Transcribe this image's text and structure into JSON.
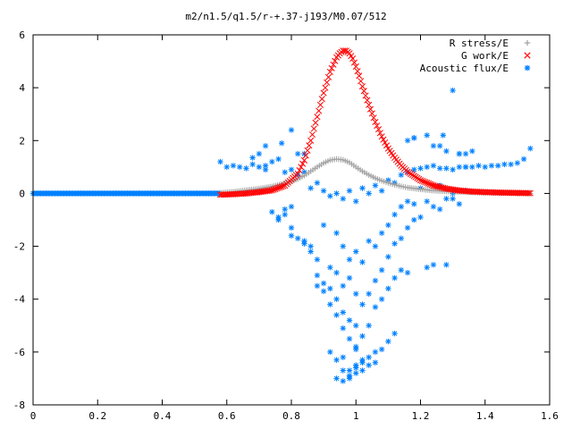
{
  "chart_data": {
    "type": "scatter",
    "title": "m2/n1.5/q1.5/r-+.37-j193/M0.07/512",
    "xlim": [
      0,
      1.6
    ],
    "ylim": [
      -8,
      6
    ],
    "xticks": [
      "0",
      "0.2",
      "0.4",
      "0.6",
      "0.8",
      "1",
      "1.2",
      "1.4",
      "1.6"
    ],
    "yticks": [
      "6",
      "4",
      "2",
      "0",
      "-2",
      "-4",
      "-6",
      "-8"
    ],
    "legend_position": "top-right",
    "colors": {
      "r_stress": "#a0a0a0",
      "g_work": "#ff0000",
      "acoustic": "#0080ff"
    },
    "series": [
      {
        "name": "R stress/E",
        "marker": "plus",
        "x": [
          0.58,
          0.62,
          0.66,
          0.7,
          0.74,
          0.78,
          0.82,
          0.84,
          0.86,
          0.88,
          0.9,
          0.92,
          0.94,
          0.96,
          0.98,
          1.0,
          1.02,
          1.04,
          1.06,
          1.08,
          1.1,
          1.12,
          1.14,
          1.16,
          1.2,
          1.24,
          1.28,
          1.32,
          1.36,
          1.4,
          1.45,
          1.5,
          1.54
        ],
        "y": [
          0.02,
          0.06,
          0.12,
          0.18,
          0.26,
          0.38,
          0.55,
          0.68,
          0.84,
          1.0,
          1.15,
          1.26,
          1.3,
          1.27,
          1.17,
          1.0,
          0.84,
          0.7,
          0.58,
          0.48,
          0.4,
          0.33,
          0.27,
          0.22,
          0.16,
          0.11,
          0.08,
          0.06,
          0.04,
          0.03,
          0.02,
          0.01,
          0.0
        ]
      },
      {
        "name": "G work/E",
        "marker": "cross",
        "x": [
          0.58,
          0.62,
          0.66,
          0.7,
          0.74,
          0.78,
          0.82,
          0.84,
          0.86,
          0.88,
          0.9,
          0.92,
          0.94,
          0.95,
          0.96,
          0.97,
          0.98,
          0.99,
          1.0,
          1.01,
          1.02,
          1.04,
          1.06,
          1.08,
          1.1,
          1.12,
          1.14,
          1.16,
          1.2,
          1.24,
          1.28,
          1.32,
          1.36,
          1.4,
          1.45,
          1.5,
          1.54
        ],
        "y": [
          -0.05,
          -0.03,
          0.0,
          0.05,
          0.12,
          0.3,
          0.75,
          1.25,
          2.0,
          2.9,
          3.8,
          4.6,
          5.15,
          5.3,
          5.4,
          5.4,
          5.3,
          5.1,
          4.8,
          4.45,
          4.05,
          3.35,
          2.7,
          2.15,
          1.7,
          1.35,
          1.05,
          0.82,
          0.5,
          0.3,
          0.18,
          0.11,
          0.07,
          0.05,
          0.03,
          0.02,
          0.01
        ]
      },
      {
        "name": "Acoustic flux/E",
        "marker": "star",
        "x": [
          0.0,
          0.58,
          0.6,
          0.62,
          0.64,
          0.66,
          0.68,
          0.7,
          0.72,
          0.72,
          0.68,
          0.7,
          0.74,
          0.76,
          0.78,
          0.8,
          0.82,
          0.84,
          0.86,
          0.88,
          0.9,
          0.92,
          0.94,
          0.96,
          0.98,
          1.0,
          1.02,
          1.04,
          1.06,
          1.08,
          1.1,
          1.12,
          1.14,
          1.16,
          1.18,
          1.2,
          1.22,
          1.24,
          1.26,
          1.28,
          1.3,
          1.32,
          1.34,
          1.36,
          1.38,
          1.4,
          1.42,
          1.44,
          1.46,
          1.48,
          1.5,
          1.52,
          1.54,
          0.74,
          0.76,
          0.78,
          0.8,
          0.8,
          0.82,
          0.84,
          0.86,
          0.88,
          0.9,
          0.92,
          0.94,
          0.94,
          0.96,
          0.96,
          0.98,
          0.98,
          1.0,
          1.0,
          1.02,
          1.04,
          1.06,
          1.08,
          1.1,
          1.12,
          1.14,
          1.16,
          1.18,
          1.2,
          1.22,
          1.24,
          1.26,
          1.28,
          1.3,
          1.32,
          1.34,
          0.76,
          0.78,
          0.8,
          0.84,
          0.86,
          0.88,
          0.9,
          0.92,
          0.94,
          0.96,
          0.98,
          1.0,
          1.02,
          1.04,
          1.06,
          1.08,
          1.1,
          1.12,
          1.14,
          1.16,
          1.18,
          1.2,
          1.22,
          1.24,
          1.26,
          1.28,
          1.3,
          1.32,
          1.34,
          0.88,
          0.9,
          0.92,
          0.94,
          0.96,
          0.98,
          1.0,
          1.02,
          1.04,
          1.06,
          1.08,
          1.1,
          1.12,
          1.14,
          1.16,
          0.92,
          0.94,
          0.96,
          0.98,
          1.0,
          1.02,
          1.04,
          1.06,
          1.08,
          1.1,
          1.12,
          0.94,
          0.96,
          0.98,
          1.0,
          1.02,
          1.04,
          1.06,
          0.98,
          1.0,
          1.02,
          0.96,
          0.98,
          1.0,
          1.3,
          1.27,
          1.26,
          1.18,
          1.22,
          0.8,
          0.72,
          0.77,
          0.82,
          0.84,
          1.16,
          1.18,
          1.24,
          1.28,
          1.32,
          1.34,
          1.36
        ],
        "y": [
          0.0,
          1.2,
          1.0,
          1.05,
          1.0,
          0.95,
          1.1,
          1.0,
          1.05,
          0.9,
          1.35,
          1.5,
          1.2,
          1.3,
          0.8,
          0.9,
          0.7,
          0.8,
          0.2,
          0.4,
          0.1,
          -0.1,
          0.0,
          -0.2,
          0.1,
          -0.3,
          0.2,
          0.0,
          0.3,
          0.1,
          0.5,
          0.4,
          0.7,
          0.8,
          0.9,
          0.95,
          1.0,
          1.05,
          0.95,
          0.95,
          0.9,
          1.0,
          1.0,
          1.0,
          1.05,
          1.0,
          1.05,
          1.05,
          1.1,
          1.1,
          1.15,
          1.3,
          1.7,
          -0.7,
          -1.0,
          -0.8,
          -0.5,
          -1.6,
          -1.7,
          -1.8,
          -2.0,
          -2.5,
          -1.2,
          -2.8,
          -3.0,
          -1.5,
          -3.5,
          -2.0,
          -3.2,
          -2.5,
          -3.8,
          -2.2,
          -2.6,
          -1.8,
          -2.0,
          -1.5,
          -1.2,
          -0.8,
          -0.5,
          -0.3,
          -0.4,
          0.2,
          -0.3,
          -0.5,
          0.3,
          -0.2,
          0.0,
          -0.4,
          0.1,
          -0.9,
          -0.6,
          -1.3,
          -1.9,
          -2.2,
          -3.1,
          -3.4,
          -3.6,
          -4.0,
          -4.5,
          -4.8,
          -5.0,
          -4.2,
          -3.8,
          -3.3,
          -2.9,
          -2.4,
          -1.9,
          -1.7,
          -1.3,
          -1.0,
          -0.9,
          -2.8,
          -2.7,
          -0.6,
          -2.7,
          -0.2,
          1.5,
          1.0,
          -3.5,
          -3.7,
          -4.2,
          -4.6,
          -5.1,
          -5.5,
          -5.8,
          -5.4,
          -5.0,
          -4.3,
          -4.0,
          -3.6,
          -3.2,
          -2.9,
          -3.0,
          -6.0,
          -6.3,
          -6.7,
          -6.9,
          -6.5,
          -6.4,
          -6.2,
          -6.0,
          -5.9,
          -5.6,
          -5.3,
          -7.0,
          -7.1,
          -6.9,
          -6.8,
          -6.7,
          -6.5,
          -6.4,
          -7.0,
          -6.6,
          -6.3,
          -6.2,
          -6.7,
          -5.9,
          3.9,
          2.2,
          1.8,
          2.1,
          2.2,
          2.4,
          1.8,
          1.9,
          1.5,
          1.5,
          2.0,
          2.1,
          1.8,
          1.6,
          1.5,
          1.5,
          1.6
        ]
      }
    ]
  }
}
